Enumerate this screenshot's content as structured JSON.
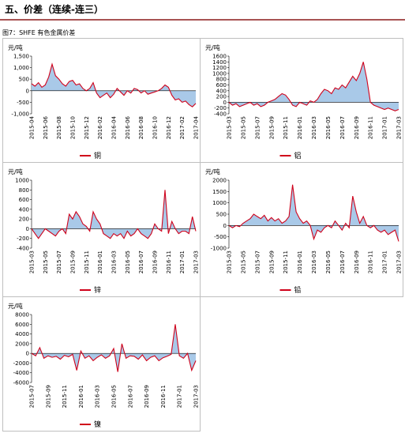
{
  "header": {
    "title": "五、价差（连续-连三）",
    "caption": "图7：SHFE 有色金属价差"
  },
  "chart_data": [
    {
      "type": "area-line",
      "y_label": "元/吨",
      "categories": [
        "2015-04",
        null,
        null,
        null,
        "2015-06",
        null,
        null,
        null,
        "2015-08",
        null,
        null,
        null,
        "2015-10",
        null,
        null,
        null,
        "2015-12",
        null,
        null,
        null,
        "2016-02",
        null,
        null,
        null,
        "2016-04",
        null,
        null,
        null,
        "2016-06",
        null,
        null,
        null,
        "2016-08",
        null,
        null,
        null,
        "2016-10",
        null,
        null,
        null,
        "2016-12",
        null,
        null,
        null,
        "2017-02",
        null,
        null,
        null,
        "2017-04"
      ],
      "series": [
        {
          "name": "铜",
          "color": "#d0021b",
          "fill": "#a9c9e8",
          "values": [
            300,
            200,
            350,
            150,
            250,
            600,
            1150,
            650,
            500,
            300,
            200,
            400,
            450,
            250,
            300,
            100,
            0,
            100,
            350,
            -100,
            -300,
            -200,
            -100,
            -300,
            -150,
            100,
            -50,
            -200,
            0,
            -100,
            100,
            50,
            -100,
            0,
            -150,
            -100,
            -50,
            0,
            100,
            250,
            150,
            -200,
            -400,
            -350,
            -500,
            -450,
            -600,
            -700,
            -550
          ]
        }
      ],
      "ylim": [
        -1000,
        1500
      ],
      "yticks": [
        {
          "value": -1000,
          "label": "-1,000"
        },
        -500,
        0,
        500,
        {
          "value": 1000,
          "label": "1,000"
        },
        {
          "value": 1500,
          "label": "1,500"
        }
      ]
    },
    {
      "type": "area-line",
      "y_label": "元/吨",
      "categories": [
        "2015-03",
        null,
        null,
        null,
        "2015-05",
        null,
        null,
        null,
        "2015-07",
        null,
        null,
        null,
        "2015-09",
        null,
        null,
        null,
        "2015-11",
        null,
        null,
        null,
        "2016-01",
        null,
        null,
        null,
        "2016-03",
        null,
        null,
        null,
        "2016-05",
        null,
        null,
        null,
        "2016-07",
        null,
        null,
        null,
        "2016-09",
        null,
        null,
        null,
        "2016-11",
        null,
        null,
        null,
        "2017-01",
        null,
        null,
        null,
        "2017-03"
      ],
      "series": [
        {
          "name": "铝",
          "color": "#d0021b",
          "fill": "#a9c9e8",
          "values": [
            0,
            -100,
            -50,
            -150,
            -100,
            -50,
            0,
            -100,
            -50,
            -150,
            -100,
            0,
            50,
            100,
            200,
            300,
            250,
            100,
            -100,
            -150,
            0,
            -50,
            -100,
            50,
            0,
            100,
            300,
            450,
            400,
            300,
            500,
            450,
            600,
            500,
            700,
            900,
            750,
            1000,
            1400,
            800,
            0,
            -100,
            -150,
            -200,
            -250,
            -200,
            -250,
            -300,
            -250
          ]
        }
      ],
      "ylim": [
        -400,
        1600
      ],
      "yticks": [
        -400,
        -200,
        0,
        200,
        400,
        600,
        800,
        1000,
        1200,
        1400,
        1600
      ]
    },
    {
      "type": "area-line",
      "y_label": "元/吨",
      "categories": [
        "2015-03",
        null,
        null,
        null,
        "2015-05",
        null,
        null,
        null,
        "2015-07",
        null,
        null,
        null,
        "2015-09",
        null,
        null,
        null,
        "2015-11",
        null,
        null,
        null,
        "2016-01",
        null,
        null,
        null,
        "2016-03",
        null,
        null,
        null,
        "2016-05",
        null,
        null,
        null,
        "2016-07",
        null,
        null,
        null,
        "2016-09",
        null,
        null,
        null,
        "2016-11",
        null,
        null,
        null,
        "2017-01",
        null,
        null,
        null,
        "2017-03"
      ],
      "series": [
        {
          "name": "锌",
          "color": "#d0021b",
          "fill": "#a9c9e8",
          "values": [
            0,
            -100,
            -200,
            -100,
            0,
            -50,
            -100,
            -150,
            -50,
            0,
            -100,
            300,
            200,
            350,
            250,
            100,
            50,
            -50,
            350,
            200,
            100,
            -100,
            -150,
            -200,
            -100,
            -150,
            -100,
            -200,
            -50,
            -150,
            -100,
            0,
            -100,
            -150,
            -200,
            -100,
            100,
            0,
            -50,
            800,
            -100,
            150,
            0,
            -100,
            -50,
            -50,
            -100,
            250,
            -50
          ]
        }
      ],
      "ylim": [
        -400,
        1000
      ],
      "yticks": [
        -400,
        -200,
        0,
        200,
        400,
        600,
        800,
        1000
      ]
    },
    {
      "type": "area-line",
      "y_label": "元/吨",
      "categories": [
        "2015-03",
        null,
        null,
        null,
        "2015-05",
        null,
        null,
        null,
        "2015-07",
        null,
        null,
        null,
        "2015-09",
        null,
        null,
        null,
        "2015-11",
        null,
        null,
        null,
        "2016-01",
        null,
        null,
        null,
        "2016-03",
        null,
        null,
        null,
        "2016-05",
        null,
        null,
        null,
        "2016-07",
        null,
        null,
        null,
        "2016-09",
        null,
        null,
        null,
        "2016-11",
        null,
        null,
        null,
        "2017-01",
        null,
        null,
        null,
        "2017-03"
      ],
      "series": [
        {
          "name": "铅",
          "color": "#d0021b",
          "fill": "#a9c9e8",
          "values": [
            0,
            -100,
            0,
            -50,
            100,
            200,
            300,
            500,
            400,
            300,
            450,
            200,
            350,
            200,
            300,
            100,
            200,
            400,
            1800,
            600,
            300,
            100,
            200,
            0,
            -600,
            -200,
            -300,
            -100,
            0,
            -100,
            200,
            0,
            -200,
            100,
            -100,
            1300,
            600,
            100,
            400,
            0,
            -100,
            0,
            -200,
            -300,
            -200,
            -400,
            -300,
            -200,
            -700
          ]
        }
      ],
      "ylim": [
        -1000,
        2000
      ],
      "yticks": [
        -1000,
        -500,
        0,
        500,
        1000,
        1500,
        2000
      ]
    },
    {
      "type": "area-line",
      "y_label": "元/吨",
      "categories": [
        "2015-07",
        null,
        null,
        null,
        "2015-09",
        null,
        null,
        null,
        "2015-11",
        null,
        null,
        null,
        "2016-01",
        null,
        null,
        null,
        "2016-03",
        null,
        null,
        null,
        "2016-05",
        null,
        null,
        null,
        "2016-07",
        null,
        null,
        null,
        "2016-09",
        null,
        null,
        null,
        "2016-11",
        null,
        null,
        null,
        "2017-01",
        null,
        null,
        null,
        "2017-03"
      ],
      "series": [
        {
          "name": "镍",
          "color": "#d0021b",
          "fill": "#a9c9e8",
          "values": [
            0,
            -500,
            1200,
            -1000,
            -500,
            -800,
            -600,
            -1200,
            -400,
            -700,
            -200,
            -3500,
            500,
            -1000,
            -500,
            -1500,
            -800,
            -300,
            -1000,
            -500,
            1000,
            -3800,
            2000,
            -1000,
            -500,
            -600,
            -1200,
            -300,
            -1500,
            -800,
            -500,
            -1500,
            -900,
            -600,
            -200,
            6000,
            -500,
            -1000,
            0,
            -3500,
            -1500
          ]
        }
      ],
      "ylim": [
        -6000,
        8000
      ],
      "yticks": [
        -6000,
        -4000,
        -2000,
        0,
        2000,
        4000,
        6000,
        8000
      ]
    }
  ]
}
